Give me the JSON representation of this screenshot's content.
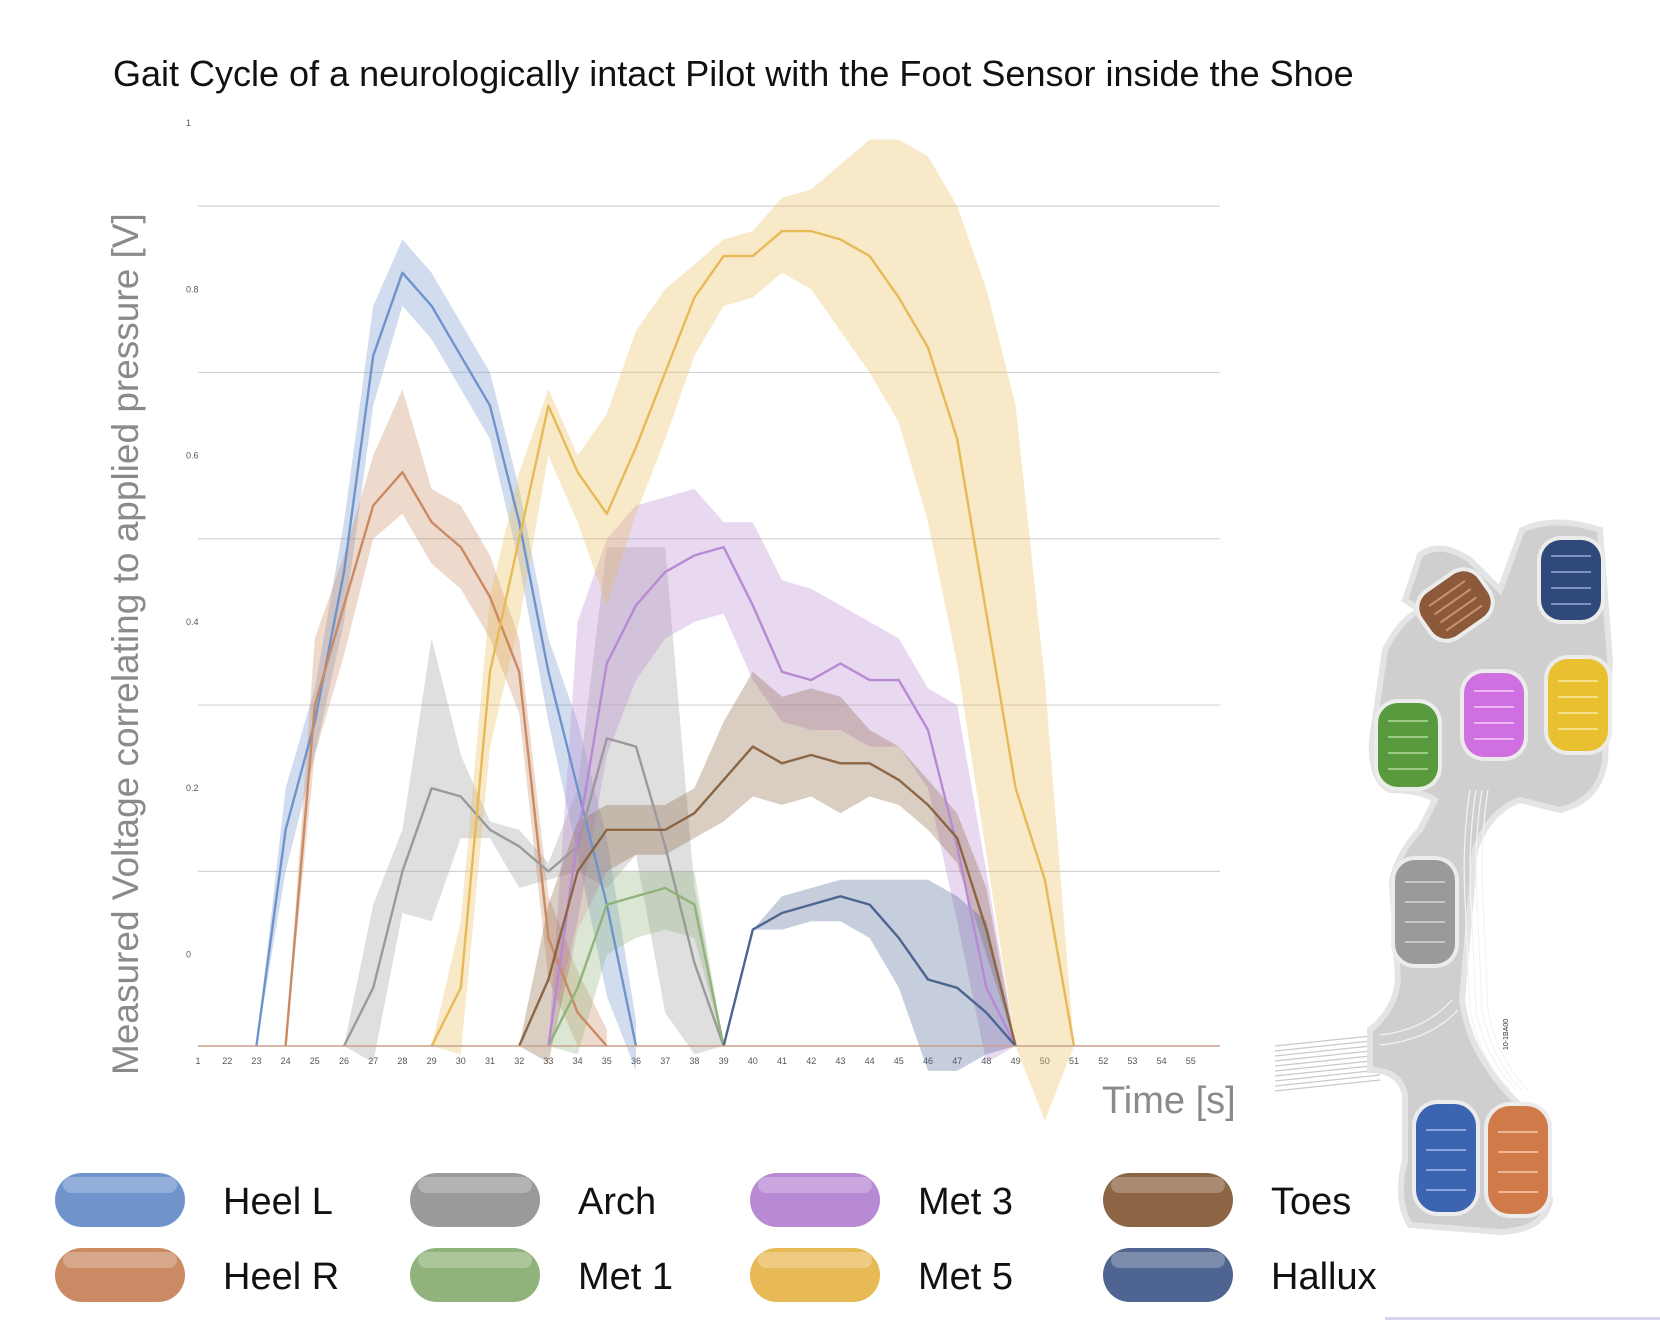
{
  "chart_data": {
    "type": "line",
    "title": "Gait Cycle of a neurologically intact Pilot with the Foot Sensor inside the Shoe",
    "xlabel": "Time [s]",
    "ylabel": "Measured Voltage correlating to applied pressure [V]",
    "xlim": [
      21,
      56
    ],
    "ylim": [
      -0.11,
      1
    ],
    "y_ticks": [
      "1",
      "0.8",
      "0.6",
      "0.4",
      "0.2",
      "0"
    ],
    "x_ticks": [
      "1",
      "22",
      "23",
      "24",
      "25",
      "26",
      "27",
      "28",
      "29",
      "30",
      "31",
      "32",
      "33",
      "34",
      "35",
      "36",
      "37",
      "38",
      "39",
      "40",
      "41",
      "42",
      "43",
      "44",
      "45",
      "46",
      "47",
      "48",
      "49",
      "50",
      "51",
      "52",
      "53",
      "54",
      "55"
    ],
    "legend_position": "bottom",
    "series": [
      {
        "name": "Heel L",
        "color": "#6f94cc",
        "x": [
          23,
          24,
          25,
          26,
          27,
          28,
          29,
          30,
          31,
          32,
          33,
          34,
          35,
          36
        ],
        "y": [
          -0.11,
          0.15,
          0.28,
          0.46,
          0.72,
          0.82,
          0.78,
          0.72,
          0.66,
          0.52,
          0.34,
          0.2,
          0.06,
          -0.11
        ],
        "lower": [
          -0.11,
          0.1,
          0.24,
          0.4,
          0.66,
          0.78,
          0.74,
          0.68,
          0.62,
          0.47,
          0.28,
          0.12,
          -0.05,
          -0.14
        ],
        "upper": [
          -0.11,
          0.2,
          0.32,
          0.52,
          0.78,
          0.86,
          0.82,
          0.76,
          0.7,
          0.56,
          0.38,
          0.28,
          0.14,
          -0.08
        ]
      },
      {
        "name": "Heel R",
        "color": "#c98a64",
        "x": [
          24,
          25,
          26,
          27,
          28,
          29,
          30,
          31,
          32,
          33,
          34,
          35
        ],
        "y": [
          -0.11,
          0.3,
          0.42,
          0.54,
          0.58,
          0.52,
          0.49,
          0.43,
          0.34,
          0.02,
          -0.07,
          -0.11
        ],
        "lower": [
          -0.11,
          0.24,
          0.36,
          0.5,
          0.53,
          0.47,
          0.44,
          0.38,
          0.29,
          -0.03,
          -0.11,
          -0.11
        ],
        "upper": [
          -0.11,
          0.38,
          0.48,
          0.6,
          0.68,
          0.56,
          0.54,
          0.48,
          0.38,
          0.07,
          -0.02,
          -0.09
        ]
      },
      {
        "name": "Arch",
        "color": "#9a9a9a",
        "x": [
          26,
          27,
          28,
          29,
          30,
          31,
          32,
          33,
          34,
          35,
          36,
          37,
          38,
          39
        ],
        "y": [
          -0.11,
          -0.04,
          0.1,
          0.2,
          0.19,
          0.15,
          0.13,
          0.1,
          0.13,
          0.26,
          0.25,
          0.13,
          -0.01,
          -0.11
        ],
        "lower": [
          -0.11,
          -0.13,
          0.05,
          0.04,
          0.14,
          0.14,
          0.08,
          0.09,
          0.1,
          0.08,
          0.12,
          -0.07,
          -0.12,
          -0.11
        ],
        "upper": [
          -0.11,
          0.06,
          0.15,
          0.38,
          0.24,
          0.16,
          0.15,
          0.11,
          0.2,
          0.49,
          0.49,
          0.49,
          0.08,
          -0.11
        ]
      },
      {
        "name": "Met 1",
        "color": "#8fb37a",
        "x": [
          33,
          34,
          35,
          36,
          37,
          38,
          39
        ],
        "y": [
          -0.11,
          -0.04,
          0.06,
          0.07,
          0.08,
          0.06,
          -0.11
        ],
        "lower": [
          -0.11,
          -0.12,
          0.0,
          0.02,
          0.03,
          0.02,
          -0.11
        ],
        "upper": [
          -0.11,
          0.03,
          0.1,
          0.1,
          0.1,
          0.1,
          -0.11
        ]
      },
      {
        "name": "Met 3",
        "color": "#b78ad3",
        "x": [
          33,
          34,
          35,
          36,
          37,
          38,
          39,
          40,
          41,
          42,
          43,
          44,
          45,
          46,
          47,
          48,
          49
        ],
        "y": [
          -0.11,
          0.14,
          0.35,
          0.42,
          0.46,
          0.48,
          0.49,
          0.42,
          0.34,
          0.33,
          0.35,
          0.33,
          0.33,
          0.27,
          0.13,
          -0.04,
          -0.11
        ],
        "lower": [
          -0.11,
          0.04,
          0.24,
          0.33,
          0.38,
          0.4,
          0.41,
          0.33,
          0.28,
          0.27,
          0.27,
          0.25,
          0.25,
          0.2,
          0.04,
          -0.13,
          -0.11
        ],
        "upper": [
          -0.11,
          0.4,
          0.5,
          0.54,
          0.55,
          0.56,
          0.52,
          0.52,
          0.45,
          0.44,
          0.42,
          0.4,
          0.38,
          0.32,
          0.3,
          0.1,
          -0.11
        ]
      },
      {
        "name": "Met 5",
        "color": "#e8ba56",
        "x": [
          29,
          30,
          31,
          32,
          33,
          34,
          35,
          36,
          37,
          38,
          39,
          40,
          41,
          42,
          43,
          44,
          45,
          46,
          47,
          48,
          49,
          50,
          51
        ],
        "y": [
          -0.11,
          -0.04,
          0.34,
          0.5,
          0.66,
          0.58,
          0.53,
          0.61,
          0.7,
          0.79,
          0.84,
          0.84,
          0.87,
          0.87,
          0.86,
          0.84,
          0.79,
          0.73,
          0.62,
          0.41,
          0.2,
          0.09,
          -0.11
        ],
        "lower": [
          -0.11,
          -0.12,
          0.25,
          0.4,
          0.6,
          0.52,
          0.42,
          0.53,
          0.62,
          0.72,
          0.78,
          0.79,
          0.82,
          0.8,
          0.75,
          0.7,
          0.64,
          0.52,
          0.35,
          0.12,
          -0.11,
          -0.2,
          -0.11
        ],
        "upper": [
          -0.11,
          0.04,
          0.43,
          0.58,
          0.68,
          0.6,
          0.65,
          0.75,
          0.8,
          0.83,
          0.86,
          0.87,
          0.91,
          0.92,
          0.95,
          0.98,
          0.98,
          0.96,
          0.9,
          0.8,
          0.66,
          0.33,
          -0.11
        ]
      },
      {
        "name": "Toes",
        "color": "#8c6644",
        "x": [
          32,
          33,
          34,
          35,
          36,
          37,
          38,
          39,
          40,
          41,
          42,
          43,
          44,
          45,
          46,
          47,
          48,
          49
        ],
        "y": [
          -0.11,
          -0.03,
          0.1,
          0.15,
          0.15,
          0.15,
          0.17,
          0.21,
          0.25,
          0.23,
          0.24,
          0.23,
          0.23,
          0.21,
          0.18,
          0.14,
          0.03,
          -0.11
        ],
        "lower": [
          -0.11,
          -0.13,
          0.03,
          0.1,
          0.12,
          0.12,
          0.14,
          0.16,
          0.19,
          0.18,
          0.19,
          0.17,
          0.19,
          0.18,
          0.15,
          0.11,
          0.0,
          -0.11
        ],
        "upper": [
          -0.11,
          0.06,
          0.16,
          0.18,
          0.18,
          0.18,
          0.2,
          0.28,
          0.34,
          0.31,
          0.32,
          0.31,
          0.27,
          0.25,
          0.21,
          0.17,
          0.08,
          -0.11
        ]
      },
      {
        "name": "Hallux",
        "color": "#4e6591",
        "x": [
          39,
          40,
          41,
          42,
          43,
          44,
          45,
          46,
          47,
          48,
          49
        ],
        "y": [
          -0.11,
          0.03,
          0.05,
          0.06,
          0.07,
          0.06,
          0.02,
          -0.03,
          -0.04,
          -0.07,
          -0.11
        ],
        "lower": [
          -0.11,
          0.03,
          0.03,
          0.04,
          0.04,
          0.02,
          -0.04,
          -0.14,
          -0.14,
          -0.12,
          -0.11
        ],
        "upper": [
          -0.11,
          0.03,
          0.07,
          0.08,
          0.09,
          0.09,
          0.09,
          0.09,
          0.07,
          0.04,
          -0.11
        ]
      }
    ]
  },
  "insole": {
    "label": "10-1BA00",
    "sensors": [
      "Toes",
      "Hallux",
      "Met 1",
      "Met 3",
      "Met 5",
      "Arch",
      "Heel L",
      "Heel R"
    ]
  }
}
